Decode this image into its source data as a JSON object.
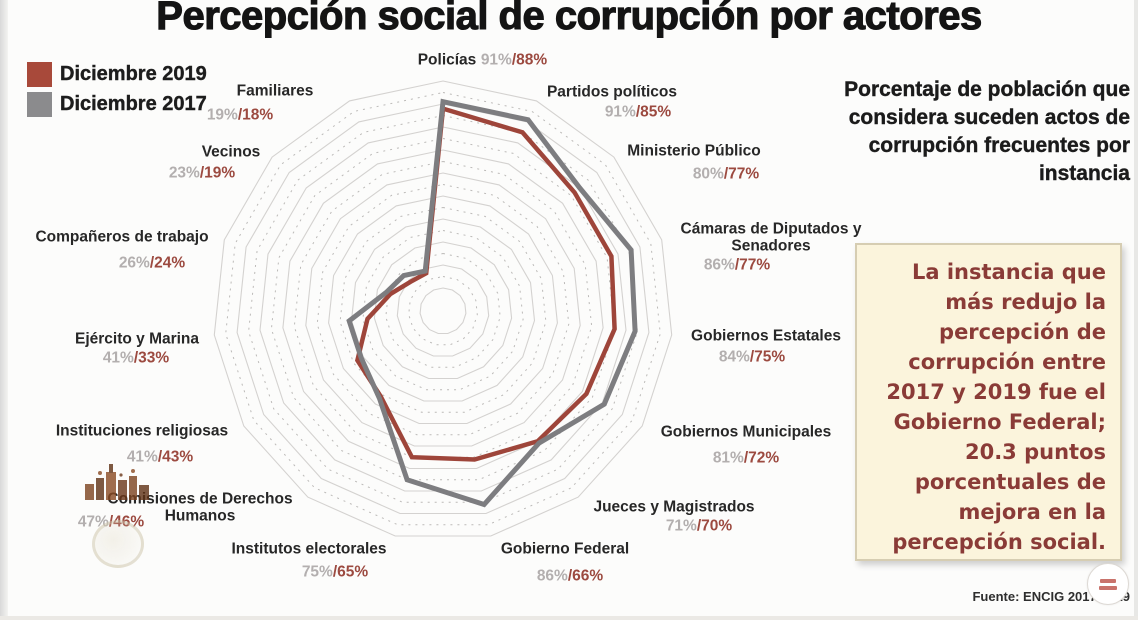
{
  "title": "Percepción social de corrupción por actores",
  "legend": [
    {
      "label": "Diciembre 2019",
      "color": "#a8493a"
    },
    {
      "label": "Diciembre 2017",
      "color": "#8b8b8d"
    }
  ],
  "subtitle_right": "Porcentaje de población que considera suceden actos de corrupción frecuentes por instancia",
  "callout_box": "La instancia que más redujo la percepción de corrupción entre 2017 y 2019 fue el Gobierno Federal; 20.3 puntos porcentuales de mejora en la percepción social.",
  "source": "Fuente: ENCIG 2017-2019",
  "chart_data": {
    "type": "radar",
    "axis_max": 100,
    "axis_start": "top",
    "direction": "clockwise",
    "grid": "concentric 15-gon rings every 5%, alternating solid/dotted, no radial spokes",
    "legend_position": "top-left",
    "categories": [
      "Policías",
      "Partidos políticos",
      "Ministerio Público",
      "Cámaras de Diputados y Senadores",
      "Gobiernos Estatales",
      "Gobiernos Municipales",
      "Jueces y Magistrados",
      "Gobierno Federal",
      "Institutos electorales",
      "Comisiones de Derechos Humanos",
      "Instituciones religiosas",
      "Ejército y Marina",
      "Compañeros de trabajo",
      "Vecinos",
      "Familiares"
    ],
    "series": [
      {
        "name": "Diciembre 2017",
        "color": "#7d7d80",
        "values": [
          91,
          91,
          80,
          86,
          84,
          81,
          71,
          86,
          75,
          47,
          41,
          41,
          26,
          23,
          19
        ]
      },
      {
        "name": "Diciembre 2019",
        "color": "#9e453a",
        "values": [
          88,
          85,
          77,
          77,
          75,
          72,
          70,
          66,
          65,
          46,
          43,
          33,
          24,
          19,
          18
        ]
      }
    ],
    "value_labels": [
      "91%/88%",
      "91%/85%",
      "80%/77%",
      "86%/77%",
      "84%/75%",
      "81%/72%",
      "71%/70%",
      "86%/66%",
      "75%/65%",
      "47%/46%",
      "41%/43%",
      "41%/33%",
      "26%/24%",
      "23%/19%",
      "19%/18%"
    ]
  }
}
